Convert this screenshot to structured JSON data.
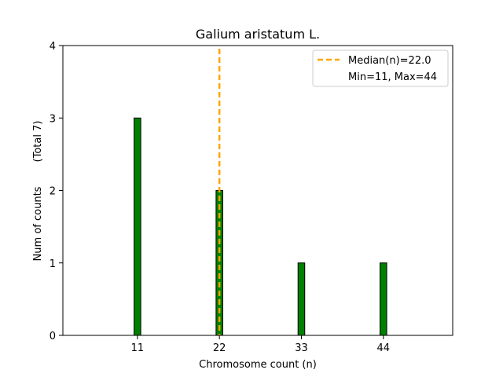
{
  "chart_data": {
    "type": "bar",
    "title": "Galium aristatum L.",
    "xlabel": "Chromosome count (n)",
    "ylabel": "Num of counts",
    "ylabel_note": "(Total 7)",
    "x": [
      11,
      22,
      33,
      44
    ],
    "values": [
      3,
      2,
      1,
      1
    ],
    "xticks": [
      "11",
      "22",
      "33",
      "44"
    ],
    "yticks": [
      "0",
      "1",
      "2",
      "3",
      "4"
    ],
    "xlim": [
      1.0,
      53.3
    ],
    "ylim": [
      0,
      4
    ],
    "bar_width": 0.9,
    "bar_color": "#008000",
    "median": 22.0,
    "median_color": "#FFA500",
    "legend": {
      "placement": "top-right",
      "median_label": "Median(n)=22.0",
      "minmax_label": "Min=11, Max=44"
    },
    "grid": false
  }
}
